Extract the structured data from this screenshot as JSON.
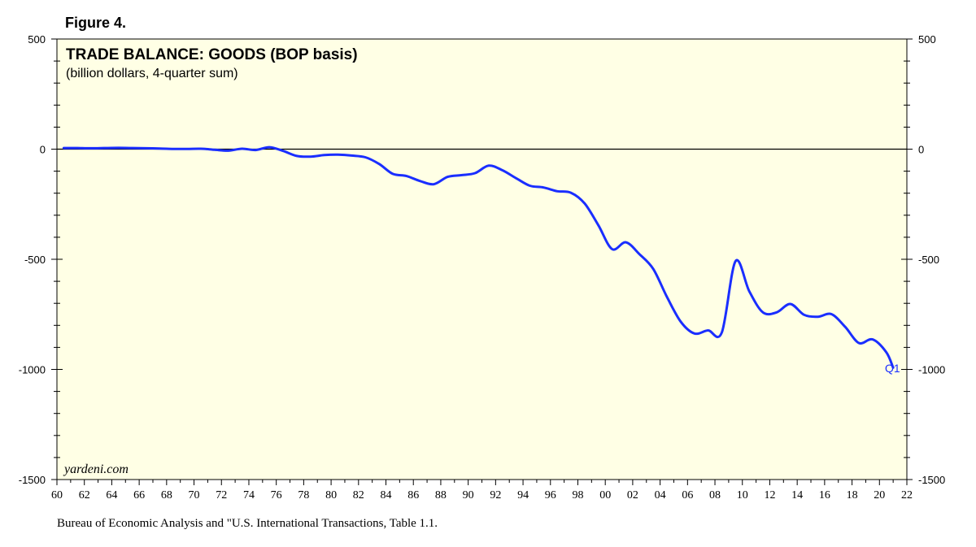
{
  "figure_label": "Figure 4.",
  "source_note": "Bureau of Economic Analysis and \"U.S. International Transactions, Table 1.1.",
  "chart_data": {
    "type": "line",
    "title": "TRADE BALANCE: GOODS (BOP basis)",
    "subtitle": "(billion dollars, 4-quarter sum)",
    "watermark": "yardeni.com",
    "end_label": "Q1",
    "xlabel": "",
    "ylabel": "",
    "xlim": [
      1960,
      2022
    ],
    "ylim": [
      -1500,
      500
    ],
    "x_ticks": [
      "60",
      "62",
      "64",
      "66",
      "68",
      "70",
      "72",
      "74",
      "76",
      "78",
      "80",
      "82",
      "84",
      "86",
      "88",
      "90",
      "92",
      "94",
      "96",
      "98",
      "00",
      "02",
      "04",
      "06",
      "08",
      "10",
      "12",
      "14",
      "16",
      "18",
      "20",
      "22"
    ],
    "y_ticks": [
      "500",
      "0",
      "-500",
      "-1000",
      "-1500"
    ],
    "grid": false,
    "zero_line": true,
    "plot_background": "#ffffe5",
    "line_color": "#1a2eff",
    "series": [
      {
        "x": [
          1960.5,
          1961.5,
          1962.5,
          1963.5,
          1964.5,
          1965.5,
          1966.5,
          1967.5,
          1968.5,
          1969.5,
          1970.5,
          1971.5,
          1972.5,
          1973.5,
          1974.5,
          1975.5,
          1976.5,
          1977.5,
          1978.5,
          1979.5,
          1980.5,
          1981.5,
          1982.5,
          1983.5,
          1984.5,
          1985.5,
          1986.5,
          1987.5,
          1988.5,
          1989.5,
          1990.5,
          1991.5,
          1992.5,
          1993.5,
          1994.5,
          1995.5,
          1996.5,
          1997.5,
          1998.5,
          1999.5,
          2000.5,
          2001.5,
          2002.5,
          2003.5,
          2004.5,
          2005.5,
          2006.5,
          2007.5,
          2008.5,
          2009.5,
          2010.5,
          2011.5,
          2012.5,
          2013.5,
          2014.5,
          2015.5,
          2016.5,
          2017.5,
          2018.5,
          2019.5,
          2020.5,
          2021.0
        ],
        "y": [
          5,
          5,
          4,
          5,
          6,
          5,
          4,
          3,
          1,
          1,
          2,
          -3,
          -7,
          2,
          -4,
          9,
          -8,
          -31,
          -34,
          -27,
          -25,
          -29,
          -37,
          -67,
          -112,
          -122,
          -145,
          -159,
          -126,
          -118,
          -109,
          -75,
          -96,
          -132,
          -166,
          -174,
          -191,
          -198,
          -247,
          -346,
          -454,
          -423,
          -477,
          -544,
          -671,
          -783,
          -837,
          -823,
          -832,
          -509,
          -645,
          -741,
          -741,
          -703,
          -752,
          -761,
          -749,
          -807,
          -880,
          -864,
          -922,
          -992
        ]
      }
    ]
  }
}
